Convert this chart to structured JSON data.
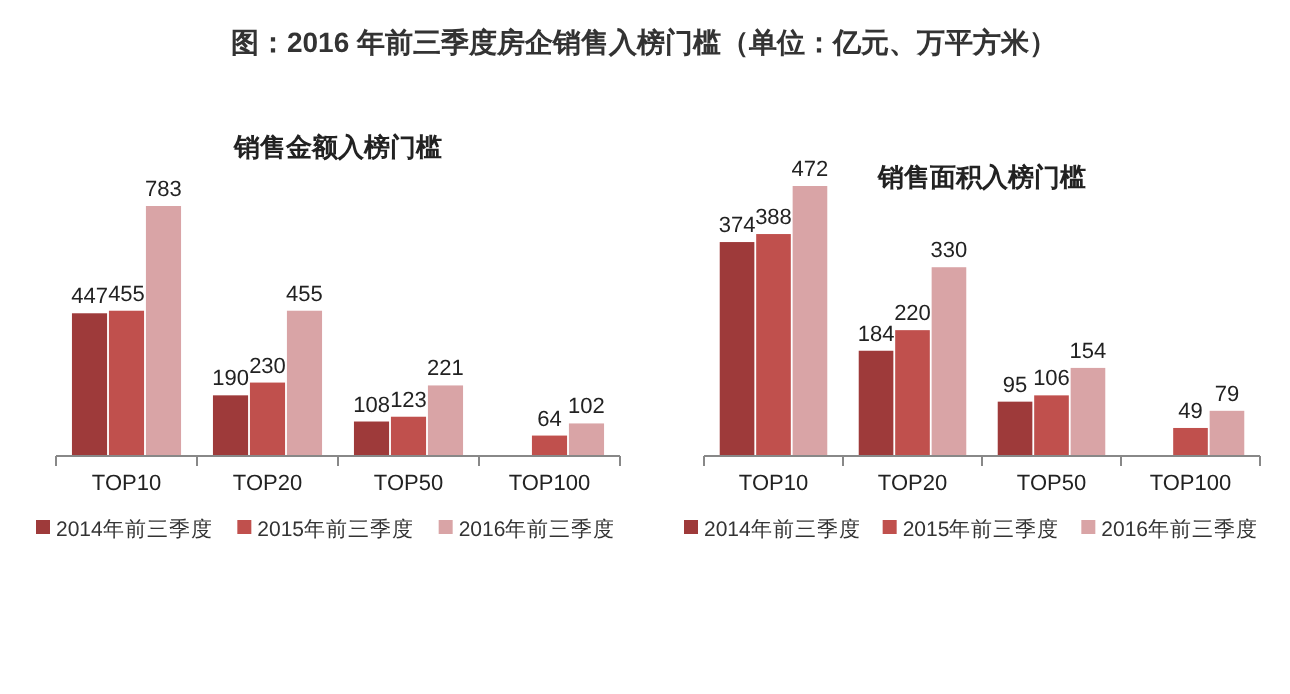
{
  "chart_data": [
    {
      "type": "other",
      "title": "图：2016 年前三季度房企销售入榜门槛（单位：亿元、万平方米）"
    },
    {
      "type": "bar",
      "title": "销售金额入榜门槛",
      "categories": [
        "TOP10",
        "TOP20",
        "TOP50",
        "TOP100"
      ],
      "data_labels": true,
      "legend": "bottom",
      "series": [
        {
          "name": "2014年前三季度",
          "color": "#9e3a3a",
          "values": [
            447,
            190,
            108,
            null
          ]
        },
        {
          "name": "2015年前三季度",
          "color": "#c0504d",
          "values": [
            455,
            230,
            123,
            64
          ]
        },
        {
          "name": "2016年前三季度",
          "color": "#d9a4a6",
          "values": [
            783,
            455,
            221,
            102
          ]
        }
      ]
    },
    {
      "type": "bar",
      "title": "销售面积入榜门槛",
      "categories": [
        "TOP10",
        "TOP20",
        "TOP50",
        "TOP100"
      ],
      "data_labels": true,
      "legend": "bottom",
      "series": [
        {
          "name": "2014年前三季度",
          "color": "#9e3a3a",
          "values": [
            374,
            184,
            95,
            null
          ]
        },
        {
          "name": "2015年前三季度",
          "color": "#c0504d",
          "values": [
            388,
            220,
            106,
            49
          ]
        },
        {
          "name": "2016年前三季度",
          "color": "#d9a4a6",
          "values": [
            472,
            330,
            154,
            79
          ]
        }
      ]
    }
  ]
}
